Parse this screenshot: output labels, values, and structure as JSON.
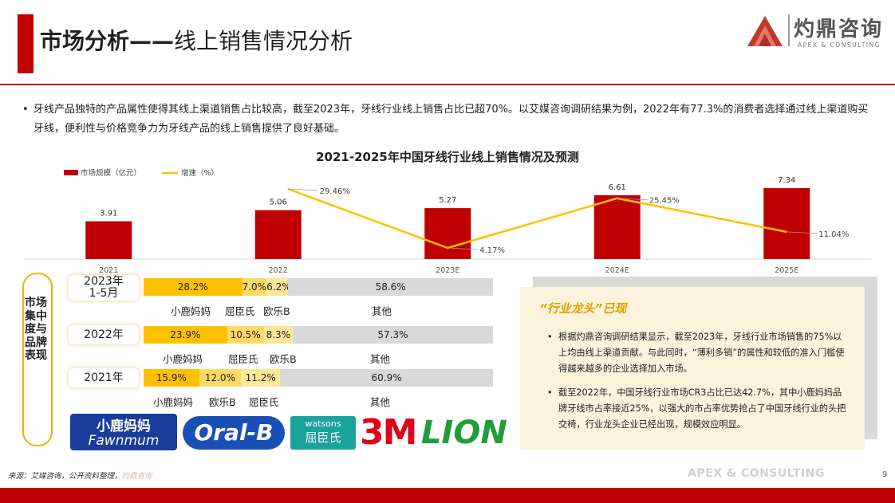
{
  "header": {
    "title_bold": "市场分析——",
    "title_rest": "线上销售情况分析",
    "logo_cn": "灼鼎咨询",
    "logo_en": "APEX & CONSULTING"
  },
  "intro": {
    "bullet": "•",
    "text": "牙线产品独特的产品属性使得其线上渠道销售占比较高，截至2023年，牙线行业线上销售占比已超70%。以艾媒咨询调研结果为例，2022年有77.3%的消费者选择通过线上渠道购买牙线，便利性与价格竞争力为牙线产品的线上销售提供了良好基础。"
  },
  "chart_data": {
    "type": "bar",
    "title": "2021-2025年中国牙线行业线上销售情况及预测",
    "categories": [
      "2021",
      "2022",
      "2023E",
      "2024E",
      "2025E"
    ],
    "series": [
      {
        "name": "市场规模（亿元）",
        "type": "bar",
        "values": [
          3.91,
          5.06,
          5.27,
          6.61,
          7.34
        ],
        "labels": [
          "3.91",
          "5.06",
          "5.27",
          "6.61",
          "7.34"
        ]
      },
      {
        "name": "增速（%）",
        "type": "line",
        "values": [
          null,
          29.46,
          4.17,
          25.45,
          11.04
        ],
        "labels": [
          "",
          "29.46%",
          "4.17%",
          "25.45%",
          "11.04%"
        ]
      }
    ],
    "legend": "top-left",
    "colors": {
      "bar": "#c00000",
      "line": "#ffc000"
    }
  },
  "concentration": {
    "side_label": "市场集中度与品牌表现",
    "rows": [
      {
        "year": "2023年\n1-5月",
        "segments": [
          {
            "v": "28.2%",
            "w": 28.2,
            "c": "#ffc000"
          },
          {
            "v": "7.0%",
            "w": 7.0,
            "c": "#ffd966"
          },
          {
            "v": "6.2%",
            "w": 6.2,
            "c": "#ffe699"
          },
          {
            "v": "58.6%",
            "w": 58.6,
            "c": "#d9d9d9"
          }
        ],
        "brands": [
          "小鹿妈妈",
          "屈臣氏",
          "欧乐B",
          "其他"
        ]
      },
      {
        "year": "2022年",
        "segments": [
          {
            "v": "23.9%",
            "w": 23.9,
            "c": "#ffc000"
          },
          {
            "v": "10.5%",
            "w": 10.5,
            "c": "#ffd966"
          },
          {
            "v": "8.3%",
            "w": 8.3,
            "c": "#ffe699"
          },
          {
            "v": "57.3%",
            "w": 57.3,
            "c": "#d9d9d9"
          }
        ],
        "brands": [
          "小鹿妈妈",
          "屈臣氏",
          "欧乐B",
          "其他"
        ]
      },
      {
        "year": "2021年",
        "segments": [
          {
            "v": "15.9%",
            "w": 15.9,
            "c": "#ffc000"
          },
          {
            "v": "12.0%",
            "w": 12.0,
            "c": "#ffd966"
          },
          {
            "v": "11.2%",
            "w": 11.2,
            "c": "#ffe699"
          },
          {
            "v": "60.9%",
            "w": 60.9,
            "c": "#d9d9d9"
          }
        ],
        "brands": [
          "小鹿妈妈",
          "欧乐B",
          "屈臣氏",
          "其他"
        ]
      }
    ],
    "logos": {
      "fawnmum_cn": "小鹿妈妈",
      "fawnmum_en": "Fawnmum",
      "oralb": "Oral-B",
      "watsons_en": "watsons",
      "watsons_cn": "屈臣氏",
      "threem": "3M",
      "lion": "LION"
    }
  },
  "leader": {
    "title": "“行业龙头”已现",
    "items": [
      "根据灼鼎咨询调研结果显示，截至2023年，牙线行业市场销售的75%以上均由线上渠道贡献。与此同时，“薄利多销”的属性和较低的准入门槛使得越来越多的企业选择加入市场。",
      "截至2022年，中国牙线行业市场CR3占比已达42.7%，其中小鹿妈妈品牌牙线市占率接近25%，以强大的市占率优势抢占了中国牙线行业的头把交椅，行业龙头企业已经出现，规模效应明显。"
    ]
  },
  "footer": {
    "source": "来源：艾媒咨询，公开资料整理，",
    "source_mark": "灼鼎咨询",
    "brand": "APEX & CONSULTING",
    "page": "9"
  }
}
